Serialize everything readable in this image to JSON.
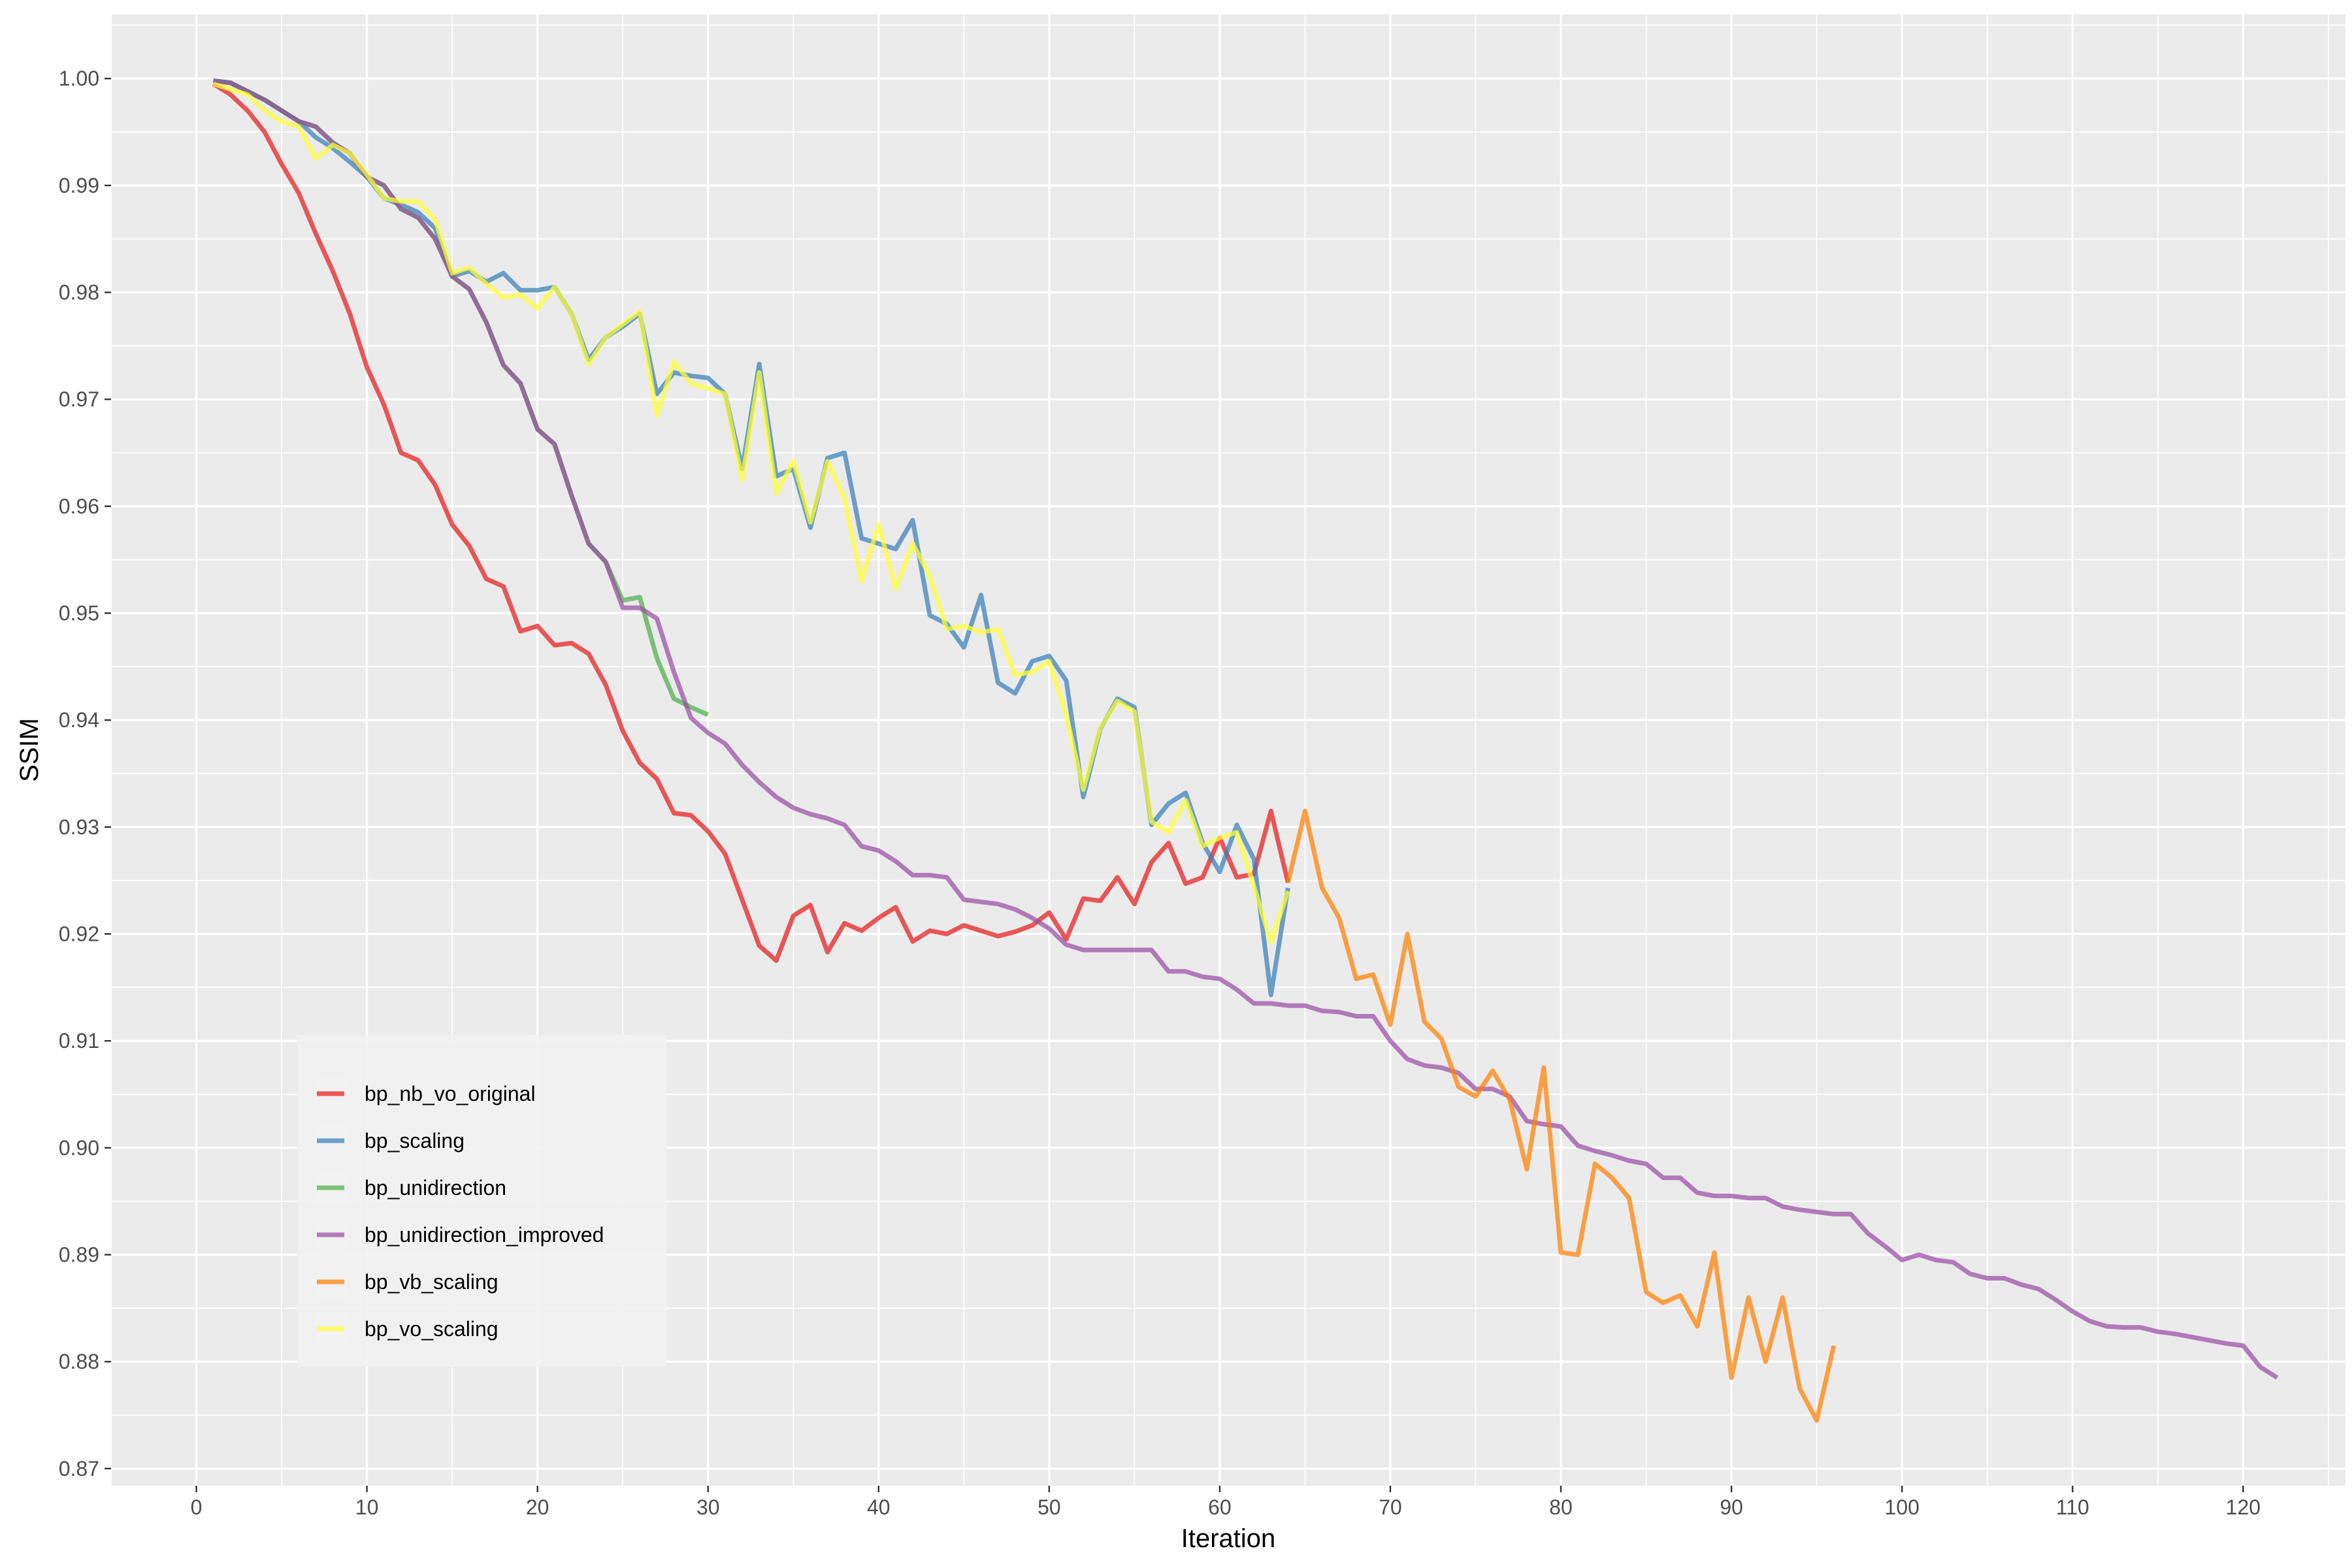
{
  "chart_data": {
    "type": "line",
    "xlabel": "Iteration",
    "ylabel": "SSIM",
    "xlim": [
      -5,
      126
    ],
    "ylim": [
      0.8684,
      1.006
    ],
    "x_ticks": [
      0,
      10,
      20,
      30,
      40,
      50,
      60,
      70,
      80,
      90,
      100,
      110,
      120
    ],
    "y_ticks": [
      0.87,
      0.88,
      0.89,
      0.9,
      0.91,
      0.92,
      0.93,
      0.94,
      0.95,
      0.96,
      0.97,
      0.98,
      0.99,
      1.0
    ],
    "x_tick_labels": [
      "0",
      "10",
      "20",
      "30",
      "40",
      "50",
      "60",
      "70",
      "80",
      "90",
      "100",
      "110",
      "120"
    ],
    "y_tick_labels": [
      "0.87",
      "0.88",
      "0.89",
      "0.90",
      "0.91",
      "0.92",
      "0.93",
      "0.94",
      "0.95",
      "0.96",
      "0.97",
      "0.98",
      "0.99",
      "1.00"
    ],
    "grid": true,
    "legend_position": "bottom-left",
    "series": [
      {
        "name": "bp_nb_vo_original",
        "color": "#E41A1C",
        "x": [
          1,
          2,
          3,
          4,
          5,
          6,
          7,
          8,
          9,
          10,
          11,
          12,
          13,
          14,
          15,
          16,
          17,
          18,
          19,
          20,
          21,
          22,
          23,
          24,
          25,
          26,
          27,
          28,
          29,
          30,
          31,
          32,
          33,
          34,
          35,
          36,
          37,
          38,
          39,
          40,
          41,
          42,
          43,
          44,
          45,
          46,
          47,
          48,
          49,
          50,
          51,
          52,
          53,
          54,
          55,
          56,
          57,
          58,
          59,
          60,
          61,
          62,
          63,
          64
        ],
        "y": [
          0.9995,
          0.9985,
          0.997,
          0.995,
          0.992,
          0.9893,
          0.9855,
          0.982,
          0.978,
          0.973,
          0.9695,
          0.965,
          0.9643,
          0.962,
          0.9583,
          0.9563,
          0.9532,
          0.9525,
          0.9483,
          0.9488,
          0.947,
          0.9472,
          0.9462,
          0.9433,
          0.939,
          0.936,
          0.9345,
          0.9313,
          0.9311,
          0.9296,
          0.9275,
          0.9232,
          0.9189,
          0.9175,
          0.9217,
          0.9227,
          0.9183,
          0.921,
          0.9203,
          0.9215,
          0.9225,
          0.9193,
          0.9203,
          0.92,
          0.9208,
          0.9203,
          0.9198,
          0.9202,
          0.9208,
          0.922,
          0.9195,
          0.9233,
          0.9231,
          0.9253,
          0.9228,
          0.9267,
          0.9285,
          0.9247,
          0.9253,
          0.929,
          0.9253,
          0.9256,
          0.9315,
          0.9248
        ]
      },
      {
        "name": "bp_scaling",
        "color": "#377EB8",
        "x": [
          1,
          2,
          3,
          4,
          5,
          6,
          7,
          8,
          9,
          10,
          11,
          12,
          13,
          14,
          15,
          16,
          17,
          18,
          19,
          20,
          21,
          22,
          23,
          24,
          25,
          26,
          27,
          28,
          29,
          30,
          31,
          32,
          33,
          34,
          35,
          36,
          37,
          38,
          39,
          40,
          41,
          42,
          43,
          44,
          45,
          46,
          47,
          48,
          49,
          50,
          51,
          52,
          53,
          54,
          55,
          56,
          57,
          58,
          59,
          60,
          61,
          62,
          63,
          64
        ],
        "y": [
          0.9998,
          0.9996,
          0.9988,
          0.998,
          0.997,
          0.996,
          0.9945,
          0.9935,
          0.9922,
          0.9908,
          0.9888,
          0.9882,
          0.9875,
          0.986,
          0.9815,
          0.982,
          0.981,
          0.9818,
          0.9802,
          0.9802,
          0.9805,
          0.978,
          0.9737,
          0.9758,
          0.9768,
          0.978,
          0.9705,
          0.9725,
          0.9722,
          0.972,
          0.9705,
          0.9635,
          0.9733,
          0.9628,
          0.9635,
          0.958,
          0.9645,
          0.965,
          0.957,
          0.9565,
          0.956,
          0.9587,
          0.9498,
          0.949,
          0.9468,
          0.9517,
          0.9435,
          0.9425,
          0.9455,
          0.946,
          0.9437,
          0.9328,
          0.9392,
          0.942,
          0.9412,
          0.9302,
          0.9322,
          0.9332,
          0.9285,
          0.9258,
          0.9302,
          0.927,
          0.9143,
          0.9243
        ]
      },
      {
        "name": "bp_unidirection",
        "color": "#4DAF4A",
        "x": [
          1,
          2,
          3,
          4,
          5,
          6,
          7,
          8,
          9,
          10,
          11,
          12,
          13,
          14,
          15,
          16,
          17,
          18,
          19,
          20,
          21,
          22,
          23,
          24,
          25,
          26,
          27,
          28,
          29,
          30
        ],
        "y": [
          0.9998,
          0.9996,
          0.9988,
          0.998,
          0.997,
          0.996,
          0.9955,
          0.994,
          0.993,
          0.9908,
          0.99,
          0.9878,
          0.987,
          0.985,
          0.9815,
          0.9803,
          0.9772,
          0.9732,
          0.9715,
          0.9672,
          0.9658,
          0.961,
          0.9565,
          0.9548,
          0.9512,
          0.9515,
          0.9458,
          0.942,
          0.9412,
          0.9405
        ]
      },
      {
        "name": "bp_unidirection_improved",
        "color": "#984EA3",
        "x": [
          1,
          2,
          3,
          4,
          5,
          6,
          7,
          8,
          9,
          10,
          11,
          12,
          13,
          14,
          15,
          16,
          17,
          18,
          19,
          20,
          21,
          22,
          23,
          24,
          25,
          26,
          27,
          28,
          29,
          30,
          31,
          32,
          33,
          34,
          35,
          36,
          37,
          38,
          39,
          40,
          41,
          42,
          43,
          44,
          45,
          46,
          47,
          48,
          49,
          50,
          51,
          52,
          53,
          54,
          55,
          56,
          57,
          58,
          59,
          60,
          61,
          62,
          63,
          64,
          65,
          66,
          67,
          68,
          69,
          70,
          71,
          72,
          73,
          74,
          75,
          76,
          77,
          78,
          79,
          80,
          81,
          82,
          83,
          84,
          85,
          86,
          87,
          88,
          89,
          90,
          91,
          92,
          93,
          94,
          95,
          96,
          97,
          98,
          99,
          100,
          101,
          102,
          103,
          104,
          105,
          106,
          107,
          108,
          109,
          110,
          111,
          112,
          113,
          114,
          115,
          116,
          117,
          118,
          119,
          120,
          121,
          122
        ],
        "y": [
          0.9998,
          0.9996,
          0.9988,
          0.998,
          0.997,
          0.996,
          0.9955,
          0.994,
          0.993,
          0.9908,
          0.99,
          0.9878,
          0.987,
          0.985,
          0.9815,
          0.9803,
          0.9772,
          0.9732,
          0.9715,
          0.9672,
          0.9658,
          0.961,
          0.9565,
          0.9548,
          0.9505,
          0.9505,
          0.9495,
          0.9445,
          0.9402,
          0.9388,
          0.9378,
          0.9358,
          0.9342,
          0.9328,
          0.9318,
          0.9312,
          0.9308,
          0.9302,
          0.9282,
          0.9278,
          0.9268,
          0.9255,
          0.9255,
          0.9253,
          0.9232,
          0.923,
          0.9228,
          0.9223,
          0.9215,
          0.9205,
          0.919,
          0.9185,
          0.9185,
          0.9185,
          0.9185,
          0.9185,
          0.9165,
          0.9165,
          0.916,
          0.9158,
          0.9148,
          0.9135,
          0.9135,
          0.9133,
          0.9133,
          0.9128,
          0.9127,
          0.9123,
          0.9123,
          0.91,
          0.9083,
          0.9077,
          0.9075,
          0.907,
          0.9055,
          0.9055,
          0.9048,
          0.9025,
          0.9022,
          0.902,
          0.9002,
          0.8997,
          0.8993,
          0.8988,
          0.8985,
          0.8972,
          0.8972,
          0.8958,
          0.8955,
          0.8955,
          0.8953,
          0.8953,
          0.8945,
          0.8942,
          0.894,
          0.8938,
          0.8938,
          0.892,
          0.8908,
          0.8895,
          0.89,
          0.8895,
          0.8893,
          0.8882,
          0.8878,
          0.8878,
          0.8872,
          0.8868,
          0.8858,
          0.8847,
          0.8838,
          0.8833,
          0.8832,
          0.8832,
          0.8828,
          0.8826,
          0.8823,
          0.882,
          0.8817,
          0.8815,
          0.8795,
          0.8785
        ]
      },
      {
        "name": "bp_vb_scaling",
        "color": "#FF7F00",
        "x": [
          64,
          65,
          66,
          67,
          68,
          69,
          70,
          71,
          72,
          73,
          74,
          75,
          76,
          77,
          78,
          79,
          80,
          81,
          82,
          83,
          84,
          85,
          86,
          87,
          88,
          89,
          90,
          91,
          92,
          93,
          94,
          95,
          96
        ],
        "y": [
          0.9248,
          0.9315,
          0.9243,
          0.9215,
          0.9158,
          0.9162,
          0.9115,
          0.92,
          0.9118,
          0.9102,
          0.9057,
          0.9048,
          0.9072,
          0.9045,
          0.898,
          0.9075,
          0.8902,
          0.89,
          0.8985,
          0.8972,
          0.8953,
          0.8865,
          0.8855,
          0.8862,
          0.8833,
          0.8902,
          0.8785,
          0.886,
          0.88,
          0.886,
          0.8775,
          0.8745,
          0.8815
        ]
      },
      {
        "name": "bp_vo_scaling",
        "color": "#FFFF33",
        "x": [
          1,
          2,
          3,
          4,
          5,
          6,
          7,
          8,
          9,
          10,
          11,
          12,
          13,
          14,
          15,
          16,
          17,
          18,
          19,
          20,
          21,
          22,
          23,
          24,
          25,
          26,
          27,
          28,
          29,
          30,
          31,
          32,
          33,
          34,
          35,
          36,
          37,
          38,
          39,
          40,
          41,
          42,
          43,
          44,
          45,
          46,
          47,
          48,
          49,
          50,
          51,
          52,
          53,
          54,
          55,
          56,
          57,
          58,
          59,
          60,
          61,
          62,
          63,
          64
        ],
        "y": [
          0.9995,
          0.999,
          0.9985,
          0.997,
          0.996,
          0.9955,
          0.9925,
          0.9938,
          0.993,
          0.991,
          0.9888,
          0.9885,
          0.9885,
          0.9868,
          0.9818,
          0.9823,
          0.9808,
          0.9795,
          0.9798,
          0.9785,
          0.9805,
          0.978,
          0.9733,
          0.9758,
          0.977,
          0.9782,
          0.9685,
          0.9735,
          0.9715,
          0.971,
          0.9705,
          0.9625,
          0.9725,
          0.9612,
          0.9642,
          0.9585,
          0.9642,
          0.9608,
          0.953,
          0.9583,
          0.9523,
          0.9565,
          0.9535,
          0.9485,
          0.9488,
          0.9482,
          0.9485,
          0.9442,
          0.9445,
          0.9455,
          0.9405,
          0.9335,
          0.9393,
          0.9418,
          0.9408,
          0.9305,
          0.9295,
          0.9325,
          0.9282,
          0.929,
          0.9295,
          0.9245,
          0.9192,
          0.924
        ]
      }
    ]
  }
}
